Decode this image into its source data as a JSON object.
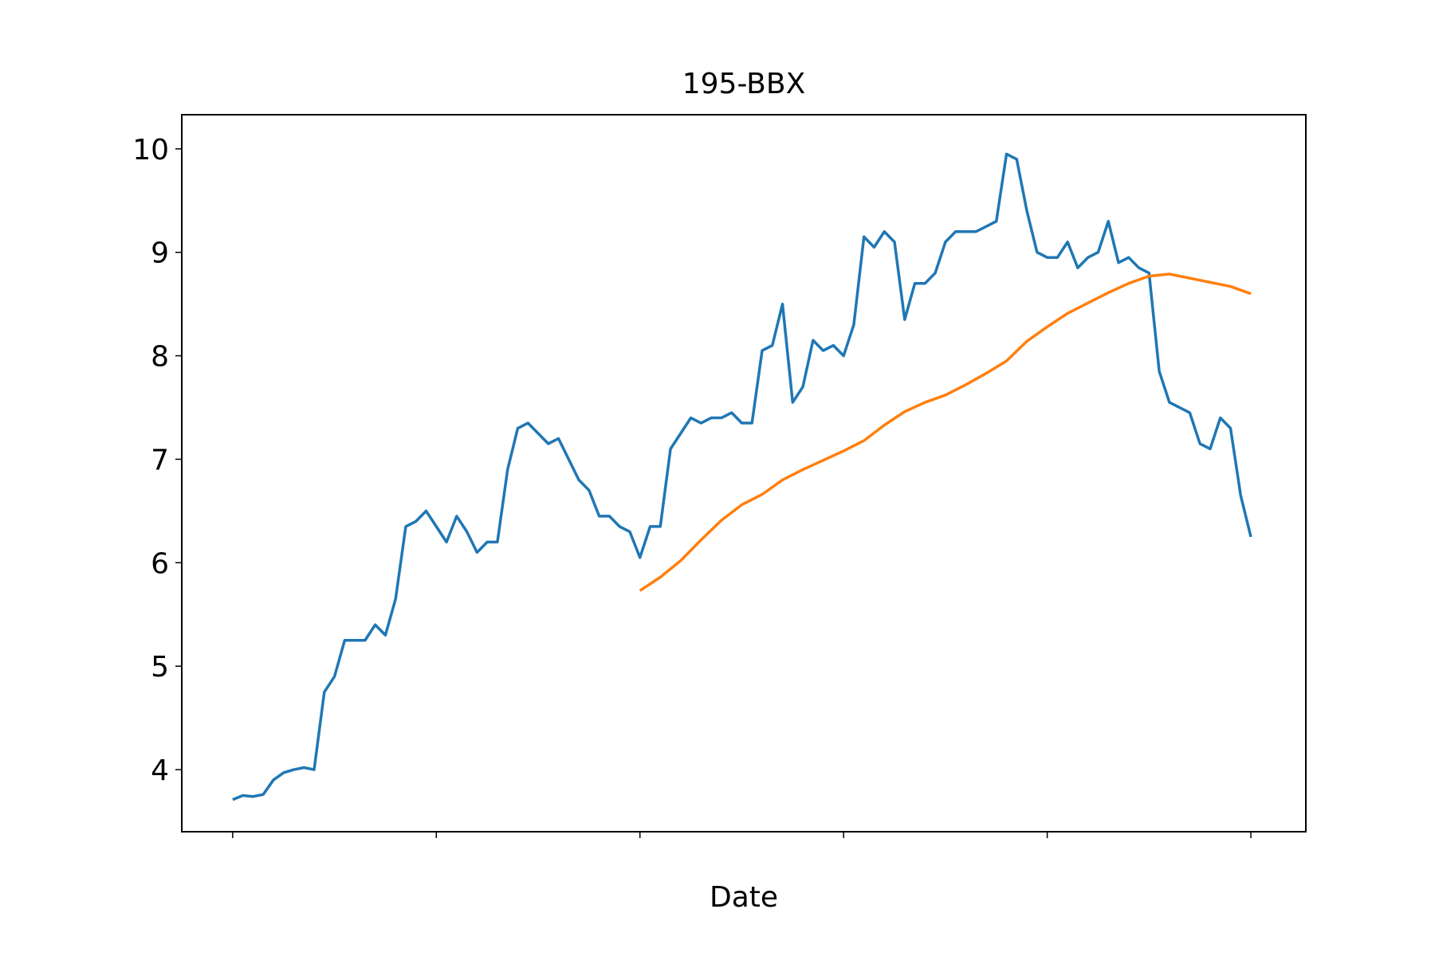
{
  "chart_data": {
    "type": "line",
    "title": "195-BBX",
    "xlabel": "Date",
    "xlim": [
      -25,
      527
    ],
    "xticks": [
      0,
      100,
      200,
      300,
      400,
      500
    ],
    "ylim": [
      3.4,
      10.33
    ],
    "yticks": [
      4,
      5,
      6,
      7,
      8,
      9,
      10
    ],
    "series": [
      {
        "color": "#1f77b4",
        "x": [
          0,
          5,
          10,
          15,
          20,
          25,
          30,
          35,
          40,
          45,
          50,
          55,
          60,
          65,
          70,
          75,
          80,
          85,
          90,
          95,
          100,
          105,
          110,
          115,
          120,
          125,
          130,
          135,
          140,
          145,
          150,
          155,
          160,
          165,
          170,
          175,
          180,
          185,
          190,
          195,
          200,
          205,
          210,
          215,
          220,
          225,
          230,
          235,
          240,
          245,
          250,
          255,
          260,
          265,
          270,
          275,
          280,
          285,
          290,
          295,
          300,
          305,
          310,
          315,
          320,
          325,
          330,
          335,
          340,
          345,
          350,
          355,
          360,
          365,
          370,
          375,
          380,
          385,
          390,
          395,
          400,
          405,
          410,
          415,
          420,
          425,
          430,
          435,
          440,
          445,
          450,
          455,
          460,
          465,
          470,
          475,
          480,
          485,
          490,
          495,
          500
        ],
        "values": [
          3.71,
          3.75,
          3.74,
          3.76,
          3.9,
          3.97,
          4.0,
          4.02,
          4.0,
          4.75,
          4.9,
          5.25,
          5.25,
          5.25,
          5.4,
          5.3,
          5.65,
          6.35,
          6.4,
          6.5,
          6.35,
          6.2,
          6.45,
          6.3,
          6.1,
          6.2,
          6.2,
          6.9,
          7.3,
          7.35,
          7.25,
          7.15,
          7.2,
          7.0,
          6.8,
          6.7,
          6.45,
          6.45,
          6.35,
          6.3,
          6.05,
          6.35,
          6.35,
          7.1,
          7.25,
          7.4,
          7.35,
          7.4,
          7.4,
          7.45,
          7.35,
          7.35,
          8.05,
          8.1,
          8.5,
          7.55,
          7.7,
          8.15,
          8.05,
          8.1,
          8.0,
          8.3,
          9.15,
          9.05,
          9.2,
          9.1,
          8.35,
          8.7,
          8.7,
          8.8,
          9.1,
          9.2,
          9.2,
          9.2,
          9.25,
          9.3,
          9.95,
          9.9,
          9.4,
          9.0,
          8.95,
          8.95,
          9.1,
          8.85,
          8.95,
          9.0,
          9.3,
          8.9,
          8.95,
          8.85,
          8.8,
          7.85,
          7.55,
          7.5,
          7.45,
          7.15,
          7.1,
          7.4,
          7.3,
          6.65,
          6.25
        ]
      },
      {
        "color": "#ff7f0e",
        "x": [
          200,
          210,
          220,
          230,
          240,
          250,
          260,
          270,
          280,
          290,
          300,
          310,
          320,
          330,
          340,
          350,
          360,
          370,
          380,
          390,
          400,
          410,
          420,
          430,
          440,
          450,
          460,
          470,
          480,
          490,
          500
        ],
        "values": [
          5.73,
          5.86,
          6.02,
          6.22,
          6.41,
          6.56,
          6.66,
          6.8,
          6.9,
          6.99,
          7.08,
          7.18,
          7.33,
          7.46,
          7.55,
          7.62,
          7.72,
          7.83,
          7.95,
          8.14,
          8.28,
          8.41,
          8.51,
          8.61,
          8.7,
          8.77,
          8.79,
          8.75,
          8.71,
          8.67,
          8.6
        ]
      }
    ]
  }
}
